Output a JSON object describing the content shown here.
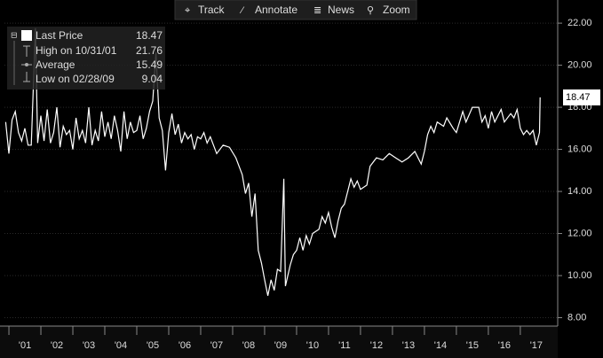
{
  "toolbar": [
    "Track",
    "Annotate",
    "News",
    "Zoom"
  ],
  "chart_data": {
    "type": "line",
    "legend": [
      {
        "label": "Last Price",
        "value": 18.47
      },
      {
        "label": "High on 10/31/01",
        "value": 21.76
      },
      {
        "label": "Average",
        "value": 15.49
      },
      {
        "label": "Low on 02/28/09",
        "value": 9.04
      }
    ],
    "x": [
      2000.9,
      2001.0,
      2001.1,
      2001.2,
      2001.3,
      2001.4,
      2001.5,
      2001.6,
      2001.7,
      2001.83,
      2001.9,
      2002.0,
      2002.1,
      2002.2,
      2002.3,
      2002.4,
      2002.5,
      2002.6,
      2002.7,
      2002.8,
      2002.9,
      2003.0,
      2003.1,
      2003.2,
      2003.3,
      2003.4,
      2003.5,
      2003.6,
      2003.7,
      2003.8,
      2003.9,
      2004.0,
      2004.1,
      2004.2,
      2004.3,
      2004.4,
      2004.5,
      2004.6,
      2004.7,
      2004.8,
      2004.9,
      2005.0,
      2005.1,
      2005.2,
      2005.3,
      2005.4,
      2005.5,
      2005.6,
      2005.7,
      2005.8,
      2005.9,
      2006.0,
      2006.1,
      2006.2,
      2006.3,
      2006.4,
      2006.5,
      2006.6,
      2006.7,
      2006.8,
      2006.9,
      2007.0,
      2007.1,
      2007.2,
      2007.3,
      2007.5,
      2007.7,
      2007.9,
      2008.1,
      2008.3,
      2008.4,
      2008.5,
      2008.6,
      2008.7,
      2008.8,
      2008.9,
      2009.0,
      2009.1,
      2009.2,
      2009.3,
      2009.4,
      2009.5,
      2009.6,
      2009.65,
      2009.8,
      2009.9,
      2010.0,
      2010.1,
      2010.2,
      2010.3,
      2010.4,
      2010.5,
      2010.7,
      2010.8,
      2010.9,
      2011.0,
      2011.1,
      2011.2,
      2011.3,
      2011.4,
      2011.5,
      2011.6,
      2011.7,
      2011.8,
      2011.9,
      2012.0,
      2012.2,
      2012.3,
      2012.5,
      2012.7,
      2012.9,
      2013.1,
      2013.3,
      2013.5,
      2013.7,
      2013.9,
      2014.0,
      2014.1,
      2014.2,
      2014.3,
      2014.4,
      2014.6,
      2014.7,
      2014.9,
      2015.0,
      2015.1,
      2015.2,
      2015.3,
      2015.5,
      2015.7,
      2015.8,
      2015.9,
      2016.0,
      2016.1,
      2016.2,
      2016.4,
      2016.5,
      2016.7,
      2016.8,
      2016.9,
      2017.0,
      2017.1,
      2017.2,
      2017.3,
      2017.4,
      2017.5,
      2017.6,
      2017.62
    ],
    "series": [
      {
        "name": "Last Price",
        "color": "#ffffff",
        "values": [
          17.3,
          15.8,
          17.4,
          17.8,
          16.8,
          16.4,
          17.0,
          16.2,
          16.2,
          21.76,
          16.3,
          17.6,
          16.4,
          17.9,
          16.3,
          16.8,
          18.0,
          16.1,
          17.1,
          16.7,
          16.9,
          16.0,
          17.5,
          16.5,
          16.9,
          16.3,
          18.0,
          16.2,
          16.9,
          16.4,
          17.8,
          16.6,
          17.3,
          16.5,
          17.6,
          16.9,
          15.9,
          17.8,
          16.5,
          17.3,
          16.8,
          16.9,
          17.6,
          16.5,
          17.0,
          17.8,
          18.3,
          20.6,
          17.5,
          16.9,
          15.0,
          16.8,
          17.7,
          16.7,
          17.2,
          16.3,
          16.8,
          16.5,
          16.7,
          16.0,
          16.6,
          16.5,
          16.8,
          16.3,
          16.6,
          15.8,
          16.2,
          16.1,
          15.6,
          14.8,
          13.9,
          14.4,
          12.8,
          13.9,
          11.2,
          10.6,
          9.8,
          9.04,
          9.8,
          9.3,
          10.3,
          10.2,
          14.6,
          9.5,
          10.5,
          11.0,
          11.2,
          11.8,
          11.2,
          11.9,
          11.5,
          12.0,
          12.2,
          12.8,
          12.5,
          13.0,
          12.3,
          11.8,
          12.6,
          13.2,
          13.4,
          14.0,
          14.6,
          14.2,
          14.5,
          14.1,
          14.3,
          15.2,
          15.6,
          15.5,
          15.8,
          15.6,
          15.4,
          15.6,
          15.9,
          15.3,
          15.9,
          16.7,
          17.1,
          16.8,
          17.3,
          17.1,
          17.5,
          17.0,
          16.8,
          17.3,
          17.8,
          17.3,
          18.0,
          18.0,
          17.3,
          17.6,
          17.0,
          17.8,
          17.3,
          17.9,
          17.3,
          17.7,
          17.5,
          17.9,
          17.0,
          16.7,
          16.9,
          16.7,
          16.9,
          16.2,
          16.8,
          18.47
        ]
      }
    ],
    "xlim": [
      2000.86,
      2018.17
    ],
    "xticks": [
      {
        "value": 2001,
        "label": "'01"
      },
      {
        "value": 2002,
        "label": "'02"
      },
      {
        "value": 2003,
        "label": "'03"
      },
      {
        "value": 2004,
        "label": "'04"
      },
      {
        "value": 2005,
        "label": "'05"
      },
      {
        "value": 2006,
        "label": "'06"
      },
      {
        "value": 2007,
        "label": "'07"
      },
      {
        "value": 2008,
        "label": "'08"
      },
      {
        "value": 2009,
        "label": "'09"
      },
      {
        "value": 2010,
        "label": "'10"
      },
      {
        "value": 2011,
        "label": "'11"
      },
      {
        "value": 2012,
        "label": "'12"
      },
      {
        "value": 2013,
        "label": "'13"
      },
      {
        "value": 2014,
        "label": "'14"
      },
      {
        "value": 2015,
        "label": "'15"
      },
      {
        "value": 2016,
        "label": "'16"
      },
      {
        "value": 2017,
        "label": "'17"
      }
    ],
    "ylim": [
      7.6,
      23.1
    ],
    "yticks": [
      {
        "value": 8,
        "label": "8.00"
      },
      {
        "value": 10,
        "label": "10.00"
      },
      {
        "value": 12,
        "label": "12.00"
      },
      {
        "value": 14,
        "label": "14.00"
      },
      {
        "value": 16,
        "label": "16.00"
      },
      {
        "value": 18,
        "label": "18.00"
      },
      {
        "value": 20,
        "label": "20.00"
      },
      {
        "value": 22,
        "label": "22.00"
      }
    ],
    "grid": true
  }
}
